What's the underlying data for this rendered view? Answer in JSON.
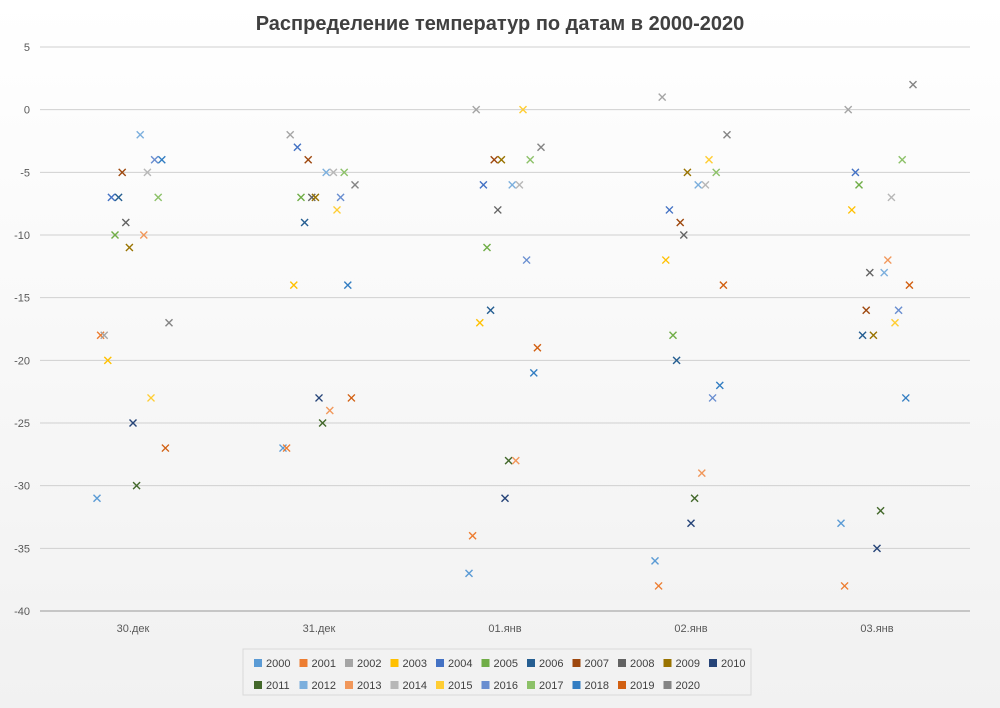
{
  "chart_data": {
    "type": "scatter",
    "title": "Распределение температур по датам в 2000-2020",
    "xlabel": "",
    "ylabel": "",
    "categories": [
      "30.дек",
      "31.дек",
      "01.янв",
      "02.янв",
      "03.янв"
    ],
    "ylim": [
      -40,
      5
    ],
    "yticks": [
      5,
      0,
      -5,
      -10,
      -15,
      -20,
      -25,
      -30,
      -35,
      -40
    ],
    "grid": true,
    "marker": "x",
    "legend_position": "bottom",
    "series": [
      {
        "name": "2000",
        "color": "#5b9bd5",
        "values": [
          -31,
          -27,
          -37,
          -36,
          -33
        ]
      },
      {
        "name": "2001",
        "color": "#ed7d31",
        "values": [
          -18,
          -27,
          -34,
          -38,
          -38
        ]
      },
      {
        "name": "2002",
        "color": "#a5a5a5",
        "values": [
          -18,
          -2,
          0,
          1,
          0
        ]
      },
      {
        "name": "2003",
        "color": "#ffc000",
        "values": [
          -20,
          -14,
          -17,
          -12,
          -8
        ]
      },
      {
        "name": "2004",
        "color": "#4472c4",
        "values": [
          -7,
          -3,
          -6,
          -8,
          -5
        ]
      },
      {
        "name": "2005",
        "color": "#70ad47",
        "values": [
          -10,
          -7,
          -11,
          -18,
          -6
        ]
      },
      {
        "name": "2006",
        "color": "#255e91",
        "values": [
          -7,
          -9,
          -16,
          -20,
          -18
        ]
      },
      {
        "name": "2007",
        "color": "#9e480e",
        "values": [
          -5,
          -4,
          -4,
          -9,
          -16
        ]
      },
      {
        "name": "2008",
        "color": "#636363",
        "values": [
          -9,
          -7,
          -8,
          -10,
          -13
        ]
      },
      {
        "name": "2009",
        "color": "#997300",
        "values": [
          -11,
          -7,
          -4,
          -5,
          -18
        ]
      },
      {
        "name": "2010",
        "color": "#264478",
        "values": [
          -25,
          -23,
          -31,
          -33,
          -35
        ]
      },
      {
        "name": "2011",
        "color": "#43682b",
        "values": [
          -30,
          -25,
          -28,
          -31,
          -32
        ]
      },
      {
        "name": "2012",
        "color": "#7cafdd",
        "values": [
          -2,
          -5,
          -6,
          -6,
          -13
        ]
      },
      {
        "name": "2013",
        "color": "#f1975a",
        "values": [
          -10,
          -24,
          -28,
          -29,
          -12
        ]
      },
      {
        "name": "2014",
        "color": "#b7b7b7",
        "values": [
          -5,
          -5,
          -6,
          -6,
          -7
        ]
      },
      {
        "name": "2015",
        "color": "#ffcd33",
        "values": [
          -23,
          -8,
          0,
          -4,
          -17
        ]
      },
      {
        "name": "2016",
        "color": "#698ed0",
        "values": [
          -4,
          -7,
          -12,
          -23,
          -16
        ]
      },
      {
        "name": "2017",
        "color": "#8cc168",
        "values": [
          -7,
          -5,
          -4,
          -5,
          -4
        ]
      },
      {
        "name": "2018",
        "color": "#327dc2",
        "values": [
          -4,
          -14,
          -21,
          -22,
          -23
        ]
      },
      {
        "name": "2019",
        "color": "#d26012",
        "values": [
          -27,
          -23,
          -19,
          -14,
          -14
        ]
      },
      {
        "name": "2020",
        "color": "#848484",
        "values": [
          -17,
          -6,
          -3,
          -2,
          2
        ]
      }
    ]
  }
}
